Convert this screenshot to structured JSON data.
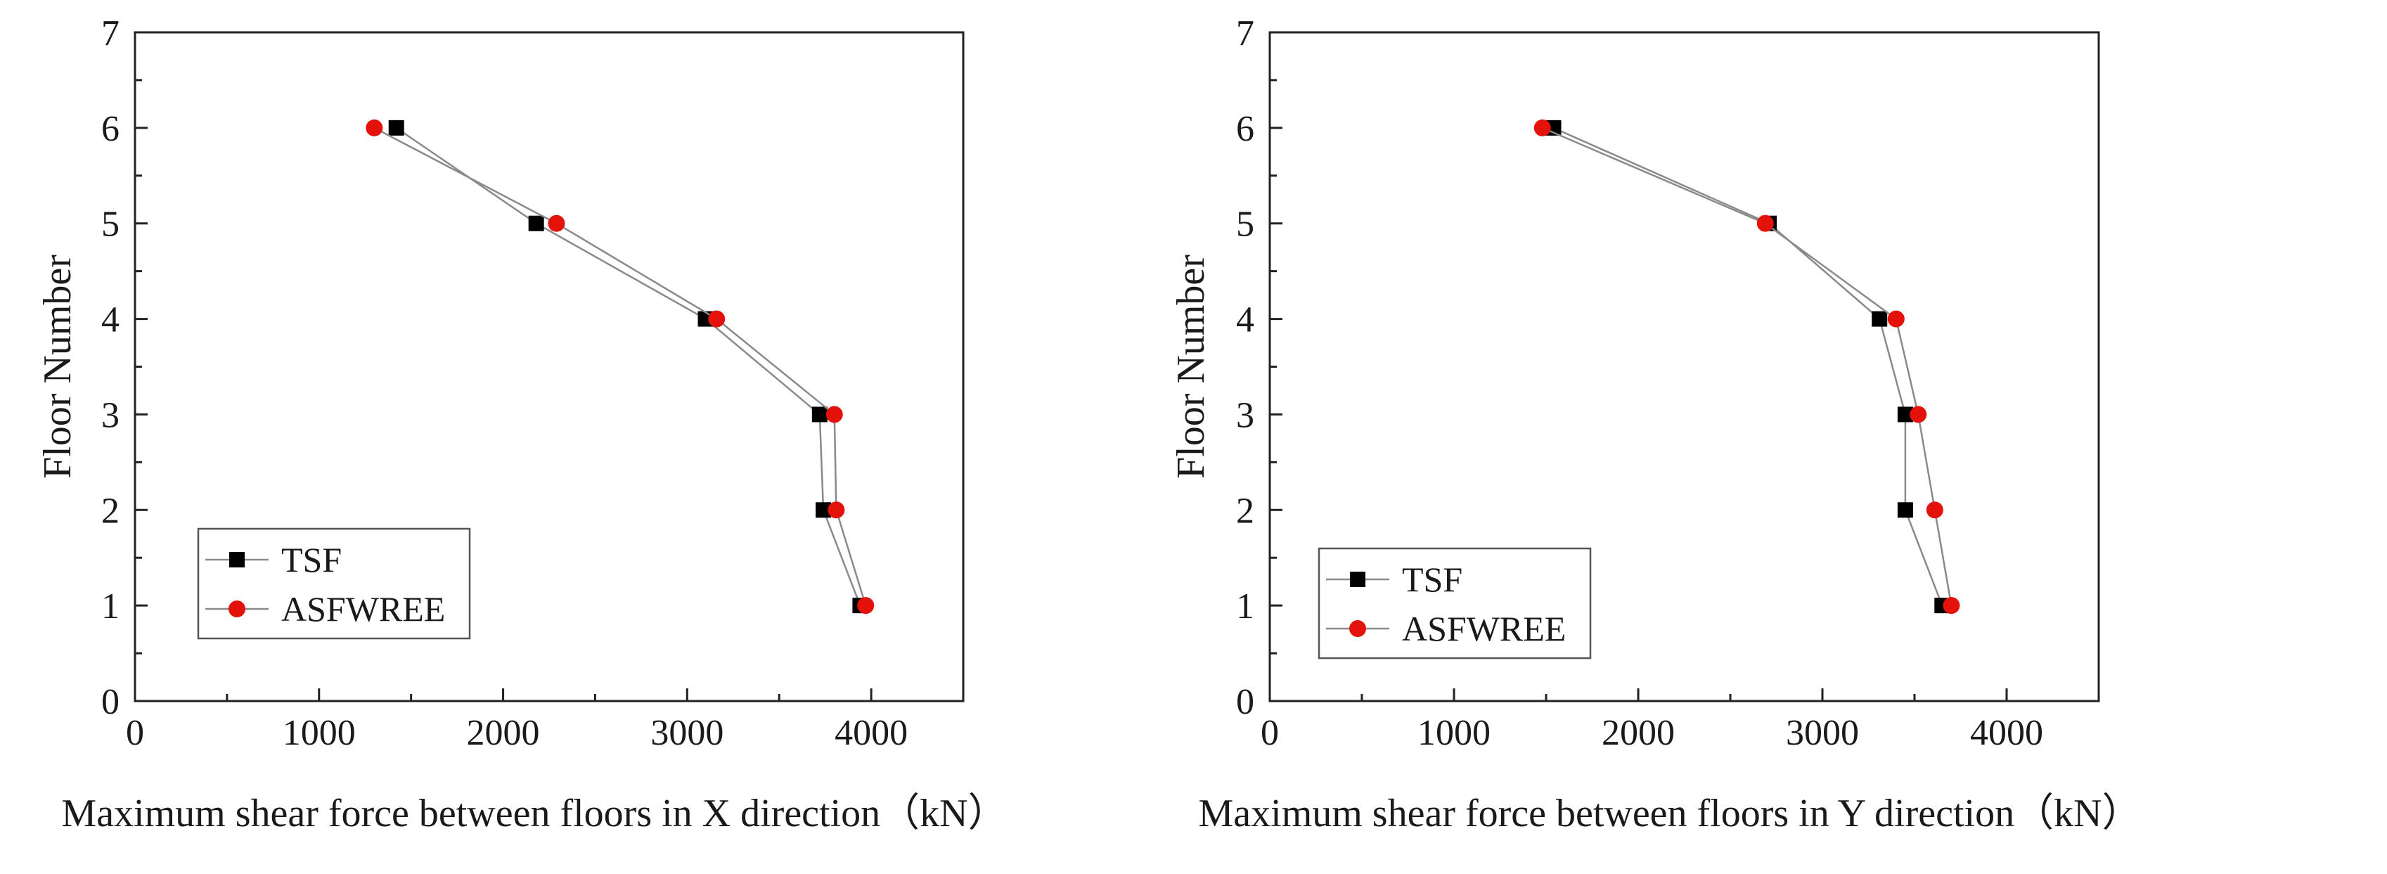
{
  "chart_data": [
    {
      "type": "line",
      "title": "",
      "xlabel": "Maximum shear force between floors in X direction（kN）",
      "ylabel": "Floor Number",
      "xlim": [
        0,
        4500
      ],
      "ylim": [
        0,
        7
      ],
      "xticks": [
        0,
        1000,
        2000,
        3000,
        4000
      ],
      "yticks": [
        0,
        1,
        2,
        3,
        4,
        5,
        6,
        7
      ],
      "grid": false,
      "legend_position": "bottom-left",
      "series": [
        {
          "name": "TSF",
          "marker": "square",
          "color": "#000000",
          "points": [
            [
              3940,
              1
            ],
            [
              3740,
              2
            ],
            [
              3720,
              3
            ],
            [
              3100,
              4
            ],
            [
              2180,
              5
            ],
            [
              1420,
              6
            ]
          ]
        },
        {
          "name": "ASFWREE",
          "marker": "circle",
          "color": "#e3120b",
          "points": [
            [
              3970,
              1
            ],
            [
              3810,
              2
            ],
            [
              3800,
              3
            ],
            [
              3160,
              4
            ],
            [
              2290,
              5
            ],
            [
              1300,
              6
            ]
          ]
        }
      ]
    },
    {
      "type": "line",
      "title": "",
      "xlabel": "Maximum shear force between floors in Y direction（kN）",
      "ylabel": "Floor Number",
      "xlim": [
        0,
        4500
      ],
      "ylim": [
        0,
        7
      ],
      "xticks": [
        0,
        1000,
        2000,
        3000,
        4000
      ],
      "yticks": [
        0,
        1,
        2,
        3,
        4,
        5,
        6,
        7
      ],
      "grid": false,
      "legend_position": "bottom-left",
      "series": [
        {
          "name": "TSF",
          "marker": "square",
          "color": "#000000",
          "points": [
            [
              3650,
              1
            ],
            [
              3450,
              2
            ],
            [
              3450,
              3
            ],
            [
              3310,
              4
            ],
            [
              2710,
              5
            ],
            [
              1540,
              6
            ]
          ]
        },
        {
          "name": "ASFWREE",
          "marker": "circle",
          "color": "#e3120b",
          "points": [
            [
              3700,
              1
            ],
            [
              3610,
              2
            ],
            [
              3520,
              3
            ],
            [
              3400,
              4
            ],
            [
              2690,
              5
            ],
            [
              1480,
              6
            ]
          ]
        }
      ]
    }
  ]
}
